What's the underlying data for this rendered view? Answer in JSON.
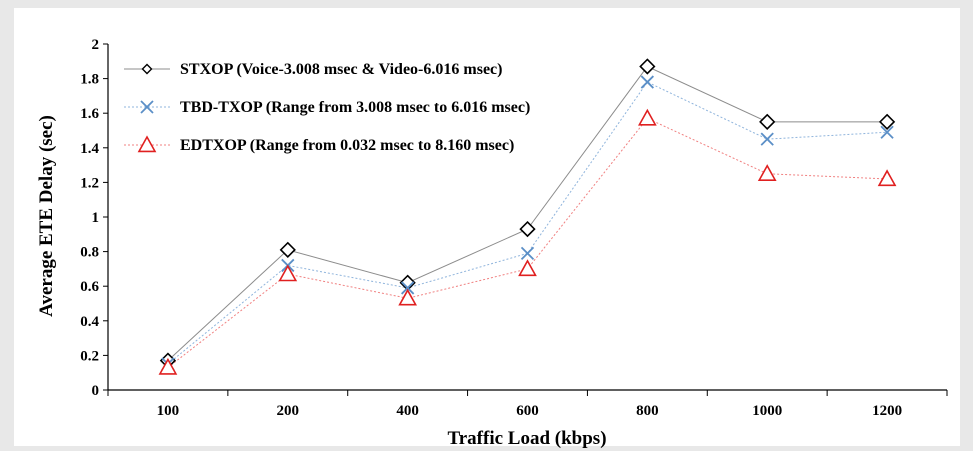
{
  "chart_data": {
    "type": "line",
    "categories": [
      "100",
      "200",
      "400",
      "600",
      "800",
      "1000",
      "1200"
    ],
    "xlabel": "Traffic Load (kbps)",
    "ylabel": "Average ETE Delay (sec)",
    "ylim": [
      0,
      2
    ],
    "yticks": [
      "0",
      "0.2",
      "0.4",
      "0.6",
      "0.8",
      "1",
      "1.2",
      "1.4",
      "1.6",
      "1.8",
      "2"
    ],
    "grid": false,
    "legend_position": "top-left",
    "series": [
      {
        "name": "STXOP (Voice-3.008 msec & Video-6.016 msec)",
        "marker": "diamond",
        "color": "#000000",
        "line_color": "#8c8c8c",
        "line_style": "solid",
        "values": [
          0.17,
          0.81,
          0.62,
          0.93,
          1.87,
          1.55,
          1.55
        ]
      },
      {
        "name": "TBD-TXOP (Range from 3.008 msec to 6.016 msec)",
        "marker": "x",
        "color": "#5b8fc7",
        "line_color": "#8fb4dc",
        "line_style": "dotted",
        "values": [
          0.15,
          0.72,
          0.59,
          0.79,
          1.78,
          1.45,
          1.49
        ]
      },
      {
        "name": "EDTXOP (Range from 0.032 msec to 8.160 msec)",
        "marker": "triangle",
        "color": "#e02020",
        "line_color": "#f08080",
        "line_style": "dotted",
        "values": [
          0.13,
          0.67,
          0.53,
          0.7,
          1.57,
          1.25,
          1.22
        ]
      }
    ]
  }
}
